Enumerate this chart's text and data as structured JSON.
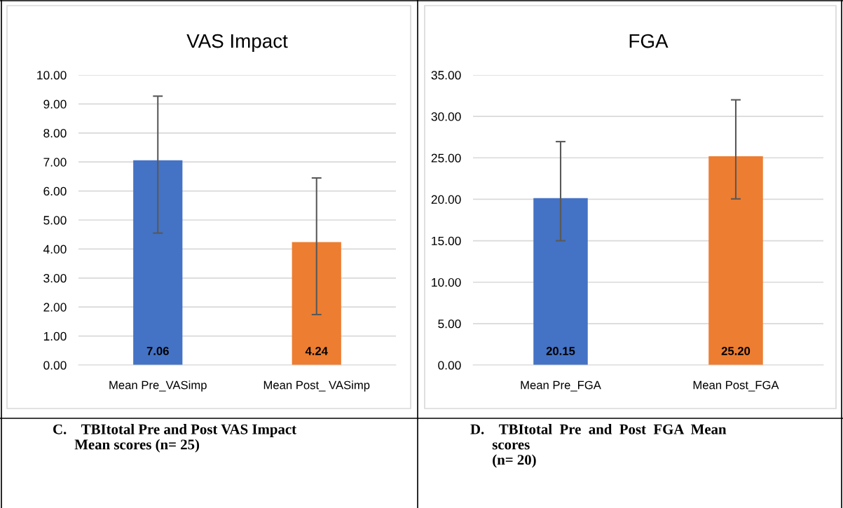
{
  "chart_data": [
    {
      "type": "bar",
      "title": "VAS Impact",
      "categories": [
        "Mean Pre_VASimp",
        "Mean Post_ VASimp"
      ],
      "values": [
        7.06,
        4.24
      ],
      "colors": [
        "#4472c4",
        "#ed7d31"
      ],
      "errors": [
        [
          4.55,
          9.27
        ],
        [
          1.74,
          6.45
        ]
      ],
      "value_labels": [
        "7.06",
        "4.24"
      ],
      "ylim": [
        0,
        10
      ],
      "yticks": [
        {
          "value": 0,
          "label": "0.00"
        },
        {
          "value": 1,
          "label": "1.00"
        },
        {
          "value": 2,
          "label": "2.00"
        },
        {
          "value": 3,
          "label": "3.00"
        },
        {
          "value": 4,
          "label": "4.00"
        },
        {
          "value": 5,
          "label": "5.00"
        },
        {
          "value": 6,
          "label": "6.00"
        },
        {
          "value": 7,
          "label": "7.00"
        },
        {
          "value": 8,
          "label": "8.00"
        },
        {
          "value": 9,
          "label": "9.00"
        },
        {
          "value": 10,
          "label": "10.00"
        }
      ],
      "grid": "y",
      "annotations": [
        "C.\tTBItotal Pre and Post VAS Impact\n\tMean scores (n= 25)"
      ]
    },
    {
      "type": "bar",
      "title": "FGA",
      "categories": [
        "Mean Pre_FGA",
        "Mean Post_FGA"
      ],
      "values": [
        20.15,
        25.2
      ],
      "colors": [
        "#4472c4",
        "#ed7d31"
      ],
      "errors": [
        [
          15.0,
          26.96
        ],
        [
          20.05,
          32.0
        ]
      ],
      "value_labels": [
        "20.15",
        "25.20"
      ],
      "ylim": [
        0,
        35
      ],
      "yticks": [
        {
          "value": 0,
          "label": "0.00"
        },
        {
          "value": 5,
          "label": "5.00"
        },
        {
          "value": 10,
          "label": "10.00"
        },
        {
          "value": 15,
          "label": "15.00"
        },
        {
          "value": 20,
          "label": "20.00"
        },
        {
          "value": 25,
          "label": "25.00"
        },
        {
          "value": 30,
          "label": "30.00"
        },
        {
          "value": 35,
          "label": "35.00"
        }
      ],
      "grid": "y",
      "annotations": [
        "D.\tTBItotal  Pre  and  Post  FGA  Mean\n\tscores\n\t(n= 20)"
      ]
    }
  ]
}
